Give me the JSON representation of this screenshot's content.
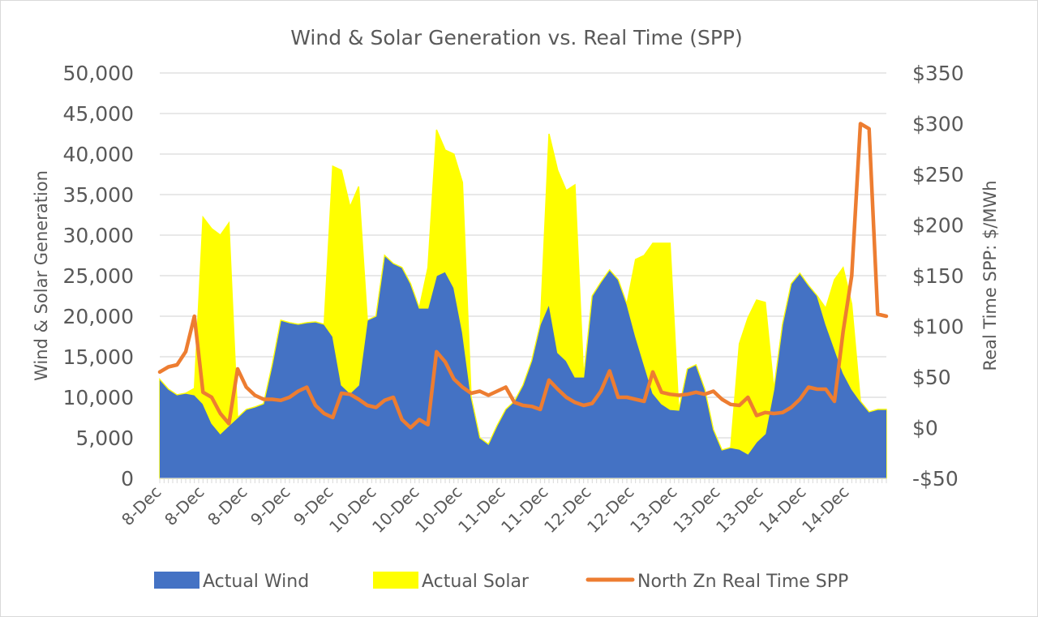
{
  "chart_data": {
    "type": "area",
    "title": "Wind & Solar Generation vs. Real Time (SPP)",
    "xlabel": "",
    "ylabel": "Wind & Solar Generation",
    "y2label": "Real Time SPP: $/MWh",
    "ylim": [
      0,
      50000
    ],
    "y2lim": [
      -50,
      350
    ],
    "yticks": [
      "0",
      "5,000",
      "10,000",
      "15,000",
      "20,000",
      "25,000",
      "30,000",
      "35,000",
      "40,000",
      "45,000",
      "50,000"
    ],
    "y2ticks": [
      "-$50",
      "$0",
      "$50",
      "$100",
      "$150",
      "$200",
      "$250",
      "$300",
      "$350"
    ],
    "xtick_labels": [
      "8-Dec",
      "8-Dec",
      "8-Dec",
      "9-Dec",
      "9-Dec",
      "10-Dec",
      "10-Dec",
      "10-Dec",
      "11-Dec",
      "11-Dec",
      "12-Dec",
      "12-Dec",
      "13-Dec",
      "13-Dec",
      "13-Dec",
      "14-Dec",
      "14-Dec"
    ],
    "grid": true,
    "legend_position": "bottom",
    "x_interval": "2-hour samples, 8-Dec to 14-Dec",
    "series": [
      {
        "name": "Actual Wind",
        "kind": "stacked-area",
        "color": "#4472C4",
        "values": [
          12200,
          11000,
          10300,
          10500,
          10300,
          9200,
          6800,
          5500,
          6500,
          7500,
          8500,
          8800,
          9200,
          14000,
          19500,
          19200,
          19000,
          19200,
          19300,
          19000,
          17500,
          11500,
          10500,
          11500,
          19500,
          20000,
          27500,
          26500,
          26000,
          24000,
          21000,
          21000,
          25000,
          25500,
          23500,
          18000,
          10000,
          5000,
          4200,
          6500,
          8500,
          9500,
          11500,
          14500,
          19000,
          21500,
          15500,
          14500,
          12500,
          12500,
          22500,
          24200,
          25700,
          24500,
          21500,
          17500,
          14000,
          10500,
          9200,
          8500,
          8400,
          13500,
          14000,
          11000,
          6000,
          3500,
          3800,
          3600,
          3000,
          4500,
          5500,
          11000,
          19000,
          24000,
          25300,
          23800,
          22500,
          19000,
          16000,
          13000,
          11000,
          9500,
          8200,
          8500,
          8500
        ]
      },
      {
        "name": "Actual Solar",
        "kind": "stacked-area",
        "color": "#FFFF00",
        "values": [
          0,
          0,
          0,
          0,
          800,
          23000,
          24000,
          24500,
          25000,
          0,
          0,
          0,
          0,
          0,
          0,
          0,
          0,
          0,
          0,
          0,
          21000,
          26500,
          23000,
          24500,
          0,
          0,
          0,
          0,
          0,
          0,
          0,
          5000,
          18000,
          15000,
          16500,
          18500,
          0,
          0,
          0,
          0,
          0,
          0,
          0,
          0,
          0,
          21000,
          22500,
          21000,
          23700,
          0,
          0,
          0,
          0,
          0,
          0,
          9500,
          13500,
          18500,
          19800,
          20500,
          0,
          0,
          0,
          0,
          0,
          0,
          0,
          13000,
          16800,
          17500,
          16200,
          0,
          0,
          0,
          0,
          0,
          0,
          2000,
          8500,
          13000,
          10500,
          0,
          0,
          0,
          0
        ]
      },
      {
        "name": "North Zn Real Time SPP",
        "kind": "line",
        "axis": "right",
        "color": "#ED7D31",
        "values": [
          55,
          60,
          62,
          75,
          110,
          35,
          30,
          14,
          4,
          58,
          40,
          32,
          28,
          28,
          27,
          30,
          36,
          40,
          22,
          14,
          10,
          34,
          33,
          28,
          22,
          20,
          27,
          30,
          8,
          0,
          8,
          3,
          75,
          65,
          48,
          40,
          34,
          36,
          32,
          36,
          40,
          25,
          22,
          21,
          18,
          47,
          38,
          30,
          25,
          22,
          24,
          36,
          56,
          30,
          30,
          28,
          26,
          55,
          35,
          33,
          32,
          33,
          35,
          33,
          36,
          28,
          23,
          22,
          30,
          12,
          15,
          14,
          15,
          20,
          28,
          40,
          38,
          38,
          26,
          95,
          150,
          300,
          295,
          112,
          110
        ]
      }
    ]
  },
  "legend": {
    "items": [
      {
        "label": "Actual Wind",
        "color": "#4472C4",
        "shape": "square"
      },
      {
        "label": "Actual Solar",
        "color": "#FFFF00",
        "shape": "square"
      },
      {
        "label": "North Zn Real Time SPP",
        "color": "#ED7D31",
        "shape": "line"
      }
    ]
  }
}
